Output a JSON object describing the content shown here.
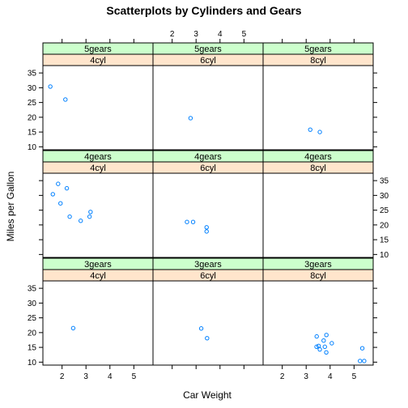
{
  "chart_data": {
    "type": "scatter",
    "title": "Scatterplots by Cylinders and Gears",
    "xlabel": "Car Weight",
    "ylabel": "Miles per Gallon",
    "xlim": [
      1.2,
      5.8
    ],
    "ylim": [
      9,
      37.5
    ],
    "x_ticks": [
      2,
      3,
      4,
      5
    ],
    "y_ticks": [
      10,
      15,
      20,
      25,
      30,
      35
    ],
    "point_color": "#0080ff",
    "gear_strip_color": "#ccffcc",
    "cyl_strip_color": "#ffe5cc",
    "panels": [
      {
        "gears": "5gears",
        "cyl": "4cyl",
        "row": 0,
        "col": 0,
        "points": [
          [
            1.51,
            30.4
          ],
          [
            2.14,
            26.0
          ]
        ]
      },
      {
        "gears": "5gears",
        "cyl": "6cyl",
        "row": 0,
        "col": 1,
        "points": [
          [
            2.77,
            19.7
          ]
        ]
      },
      {
        "gears": "5gears",
        "cyl": "8cyl",
        "row": 0,
        "col": 2,
        "points": [
          [
            3.17,
            15.8
          ],
          [
            3.57,
            15.0
          ]
        ]
      },
      {
        "gears": "4gears",
        "cyl": "4cyl",
        "row": 1,
        "col": 0,
        "points": [
          [
            2.32,
            22.8
          ],
          [
            3.19,
            24.4
          ],
          [
            3.15,
            22.8
          ],
          [
            2.2,
            32.4
          ],
          [
            1.615,
            30.4
          ],
          [
            1.835,
            33.9
          ],
          [
            1.935,
            27.3
          ],
          [
            2.78,
            21.4
          ]
        ]
      },
      {
        "gears": "4gears",
        "cyl": "6cyl",
        "row": 1,
        "col": 1,
        "points": [
          [
            2.62,
            21.0
          ],
          [
            2.875,
            21.0
          ],
          [
            3.44,
            19.2
          ],
          [
            3.44,
            17.8
          ]
        ]
      },
      {
        "gears": "4gears",
        "cyl": "8cyl",
        "row": 1,
        "col": 2,
        "points": []
      },
      {
        "gears": "3gears",
        "cyl": "4cyl",
        "row": 2,
        "col": 0,
        "points": [
          [
            2.465,
            21.5
          ]
        ]
      },
      {
        "gears": "3gears",
        "cyl": "6cyl",
        "row": 2,
        "col": 1,
        "points": [
          [
            3.215,
            21.4
          ],
          [
            3.46,
            18.1
          ]
        ]
      },
      {
        "gears": "3gears",
        "cyl": "8cyl",
        "row": 2,
        "col": 2,
        "points": [
          [
            3.44,
            18.7
          ],
          [
            3.57,
            14.3
          ],
          [
            4.07,
            16.4
          ],
          [
            3.73,
            17.3
          ],
          [
            3.78,
            15.2
          ],
          [
            5.25,
            10.4
          ],
          [
            5.424,
            10.4
          ],
          [
            5.345,
            14.7
          ],
          [
            3.52,
            15.5
          ],
          [
            3.435,
            15.2
          ],
          [
            3.84,
            13.3
          ],
          [
            3.845,
            19.2
          ]
        ]
      }
    ]
  }
}
